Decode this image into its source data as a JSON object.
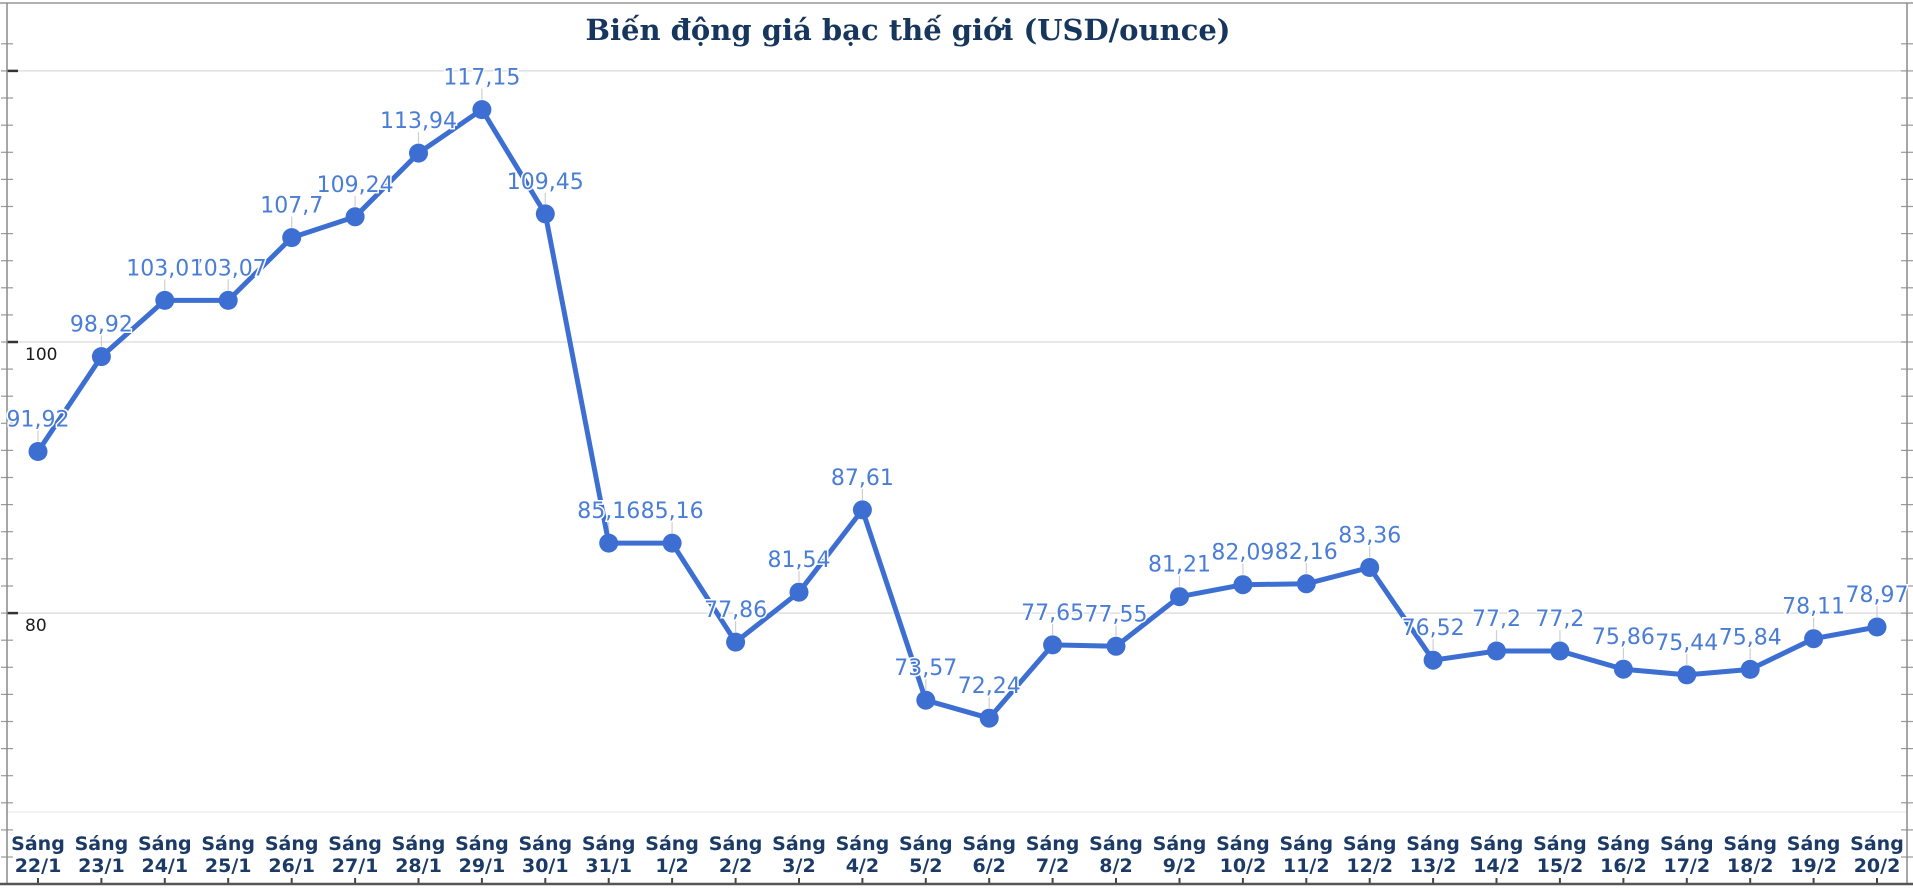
{
  "chart_data": {
    "type": "line",
    "title": "Biến động giá bạc thế giới (USD/ounce)",
    "categories": [
      "Sáng 22/1",
      "Sáng 23/1",
      "Sáng 24/1",
      "Sáng 25/1",
      "Sáng 26/1",
      "Sáng 27/1",
      "Sáng 28/1",
      "Sáng 29/1",
      "Sáng 30/1",
      "Sáng 31/1",
      "Sáng 1/2",
      "Sáng 2/2",
      "Sáng 3/2",
      "Sáng 4/2",
      "Sáng 5/2",
      "Sáng 6/2",
      "Sáng 7/2",
      "Sáng 8/2",
      "Sáng 9/2",
      "Sáng 10/2",
      "Sáng 11/2",
      "Sáng 12/2",
      "Sáng 13/2",
      "Sáng 14/2",
      "Sáng 15/2",
      "Sáng 16/2",
      "Sáng 17/2",
      "Sáng 18/2",
      "Sáng 19/2",
      "Sáng 20/2"
    ],
    "values": [
      91.92,
      98.92,
      103.07,
      103.07,
      107.7,
      109.24,
      113.94,
      117.15,
      109.45,
      85.16,
      85.16,
      77.86,
      81.54,
      87.61,
      73.57,
      72.24,
      77.65,
      77.55,
      81.21,
      82.09,
      82.16,
      83.36,
      76.52,
      77.2,
      77.2,
      75.86,
      75.44,
      75.84,
      78.11,
      78.97
    ],
    "point_labels": [
      "91,92",
      "98,92",
      "103,07",
      "103,07",
      "107,7",
      "109,24",
      "113,94",
      "117,15",
      "109,45",
      "85,16",
      "85,16",
      "77,86",
      "81,54",
      "87,61",
      "73,57",
      "72,24",
      "77,65",
      "77,55",
      "81,21",
      "82,09",
      "82,16",
      "83,36",
      "76,52",
      "77,2",
      "77,2",
      "75,86",
      "75,44",
      "75,84",
      "78,11",
      "78,97"
    ],
    "xlabel": "",
    "ylabel": "",
    "y_axis": {
      "tick_labels": [
        "100",
        "80"
      ],
      "tick_values": [
        100,
        80
      ],
      "gridline_values": [
        120,
        100,
        80
      ],
      "minor_tick_step": 2,
      "approx_range": [
        65,
        122
      ]
    },
    "legend_position": "none",
    "grid": "horizontal-major",
    "colors": {
      "series": "#3D6FD3",
      "point_label": "#4A7DD6",
      "category_label": "#1B3A66",
      "title": "#17365D",
      "axis_tick_label": "#1A1A1A",
      "gridline": "#DADADA",
      "leader_line": "#CFCFCF",
      "border": "#8A8A8A"
    }
  }
}
